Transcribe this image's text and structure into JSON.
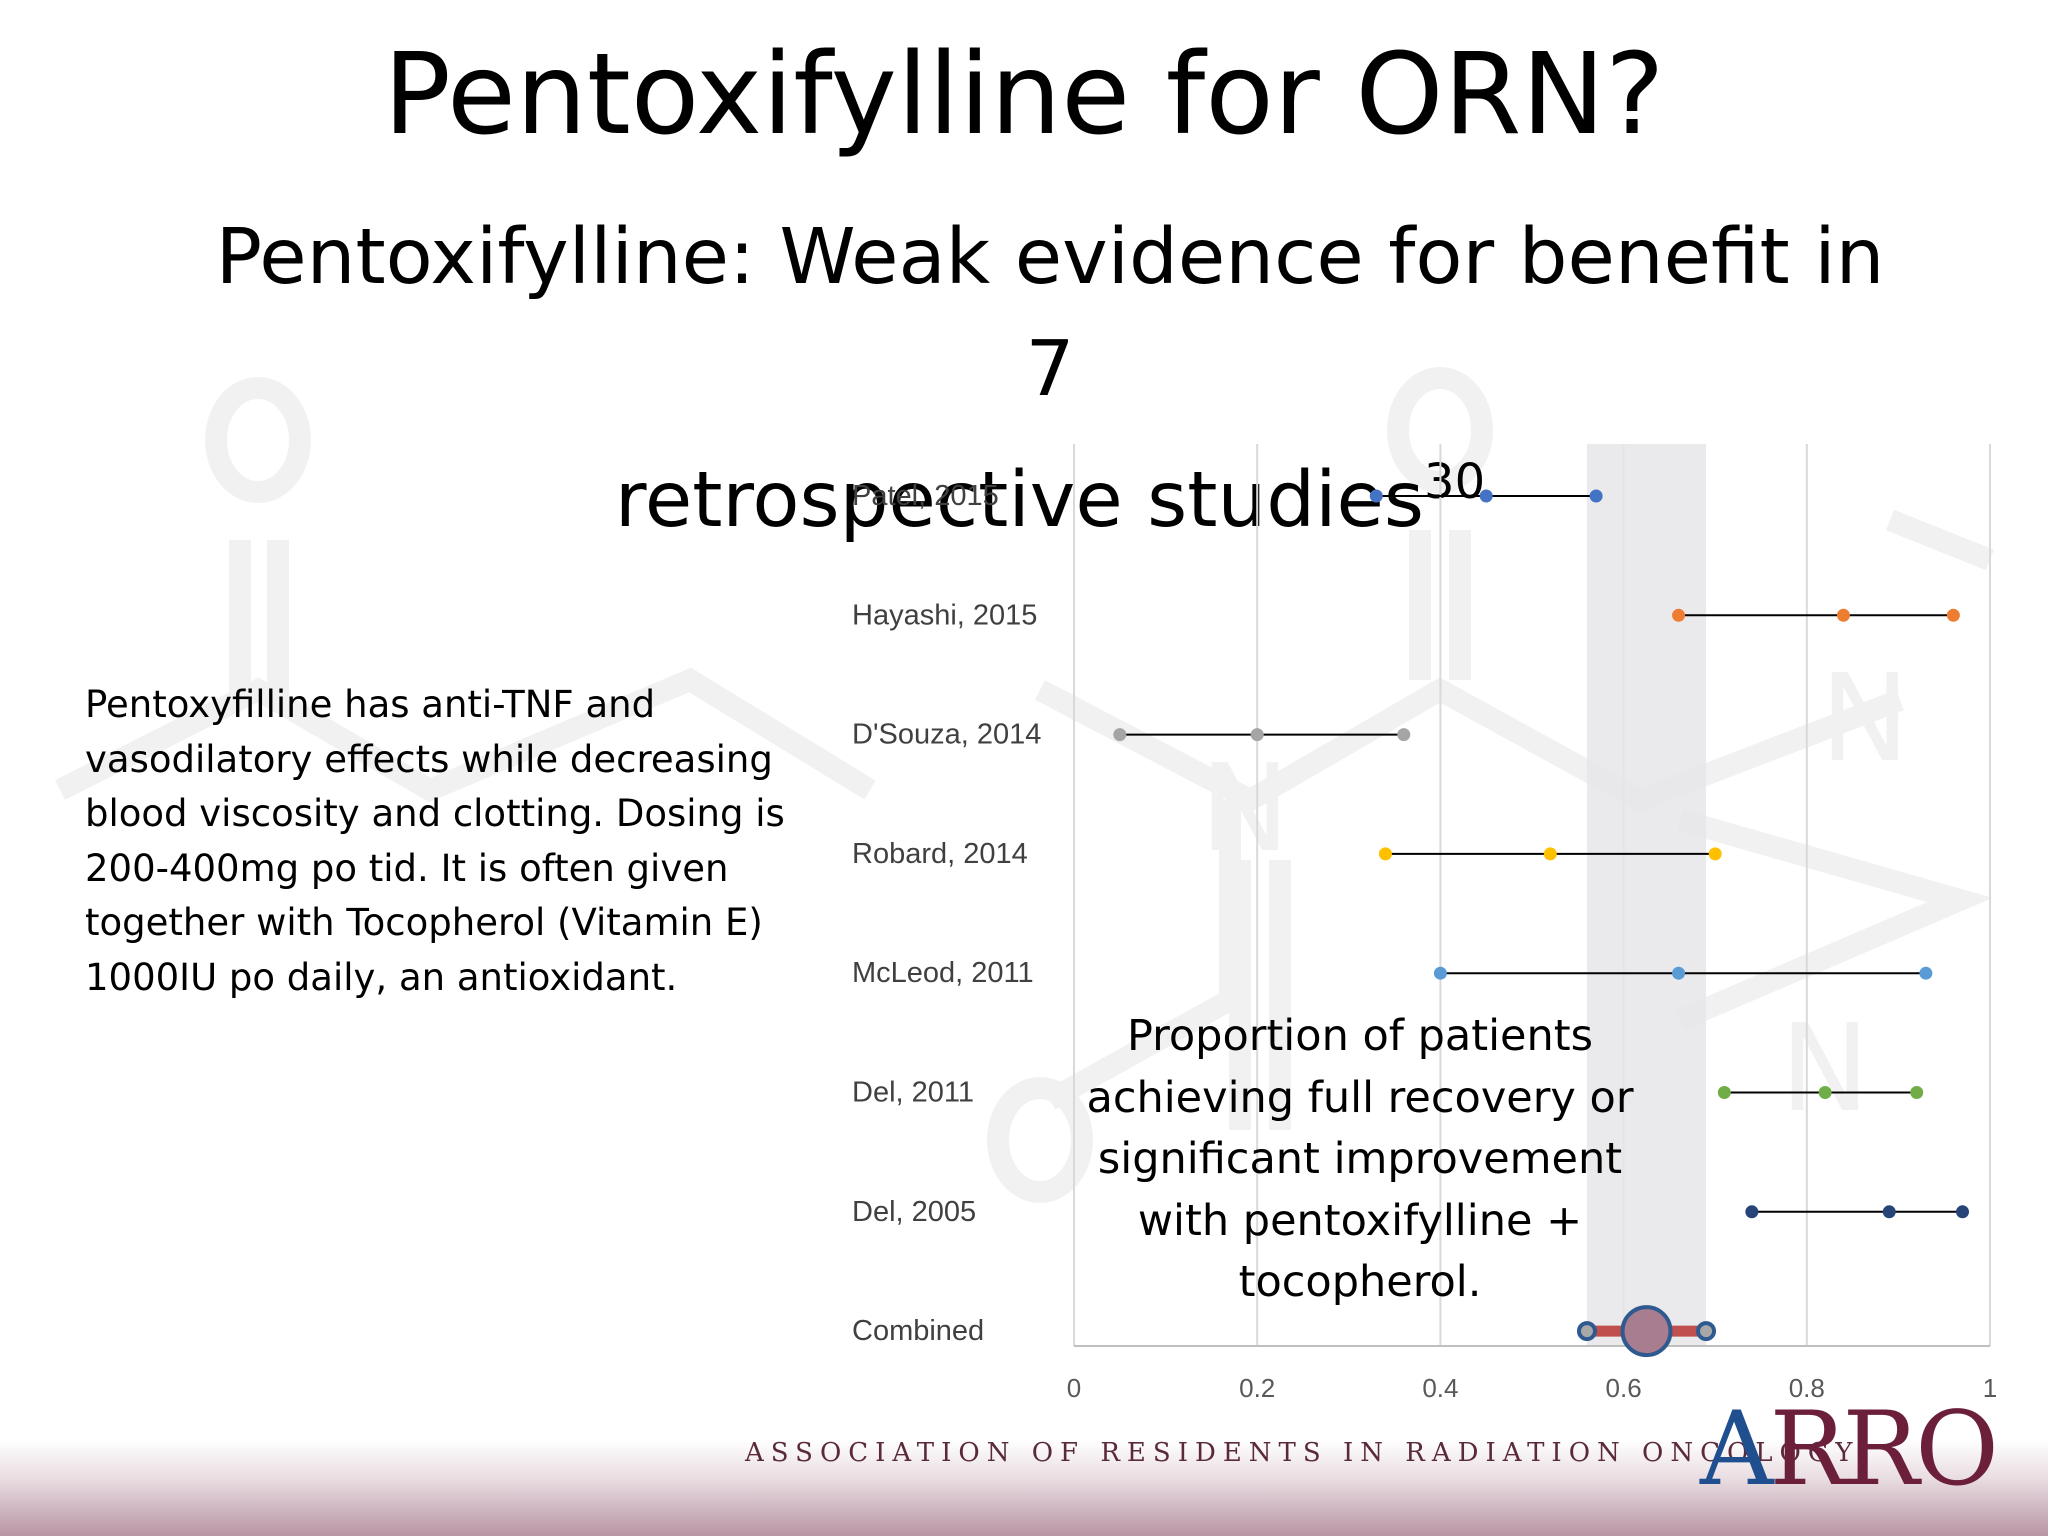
{
  "slide": {
    "title": "Pentoxifylline for ORN?",
    "subtitle_line1": "Pentoxifylline: Weak evidence for benefit in 7",
    "subtitle_line2": "retrospective studies",
    "subtitle_ref": "30",
    "body": "Pentoxyfilline has anti-TNF and vasodilatory effects while decreasing blood viscosity and clotting. Dosing is 200-400mg po tid. It is often given together with Tocopherol (Vitamin E) 1000IU po daily, an antioxidant.",
    "annotation": "Proportion of patients achieving full recovery or significant improvement with pentoxifylline + tocopherol."
  },
  "footer": {
    "organization": "ASSOCIATION OF RESIDENTS IN RADIATION ONCOLOGY",
    "logo_text_a": "A",
    "logo_text_rest": "RRO",
    "logo_color": "#6b1f3a",
    "logo_accent": "#1f4f8f"
  },
  "chart_data": {
    "type": "scatter",
    "subtype": "forest-plot",
    "title": "",
    "xlabel": "",
    "ylabel": "",
    "xlim": [
      0,
      1
    ],
    "x_ticks": [
      0,
      0.2,
      0.4,
      0.6,
      0.8,
      1
    ],
    "x_tick_labels": [
      "0",
      "0.2",
      "0.4",
      "0.6",
      "0.8",
      "1"
    ],
    "grid": true,
    "shaded_band": [
      0.56,
      0.69
    ],
    "studies": [
      {
        "label": "Patel, 2015",
        "low": 0.33,
        "point": 0.45,
        "high": 0.57,
        "color": "#4472c4"
      },
      {
        "label": "Hayashi, 2015",
        "low": 0.66,
        "point": 0.84,
        "high": 0.96,
        "color": "#ed7d31"
      },
      {
        "label": "D'Souza, 2014",
        "low": 0.05,
        "point": 0.2,
        "high": 0.36,
        "color": "#a5a5a5"
      },
      {
        "label": "Robard, 2014",
        "low": 0.34,
        "point": 0.52,
        "high": 0.7,
        "color": "#ffc000"
      },
      {
        "label": "McLeod, 2011",
        "low": 0.4,
        "point": 0.66,
        "high": 0.93,
        "color": "#5b9bd5"
      },
      {
        "label": "Del, 2011",
        "low": 0.71,
        "point": 0.82,
        "high": 0.92,
        "color": "#70ad47"
      },
      {
        "label": "Del, 2005",
        "low": 0.74,
        "point": 0.89,
        "high": 0.97,
        "color": "#264478"
      }
    ],
    "combined": {
      "label": "Combined",
      "low": 0.56,
      "point": 0.625,
      "high": 0.69,
      "fill": "#a87d8f",
      "stroke": "#2e5a8f",
      "bar": "#c0504d"
    }
  }
}
